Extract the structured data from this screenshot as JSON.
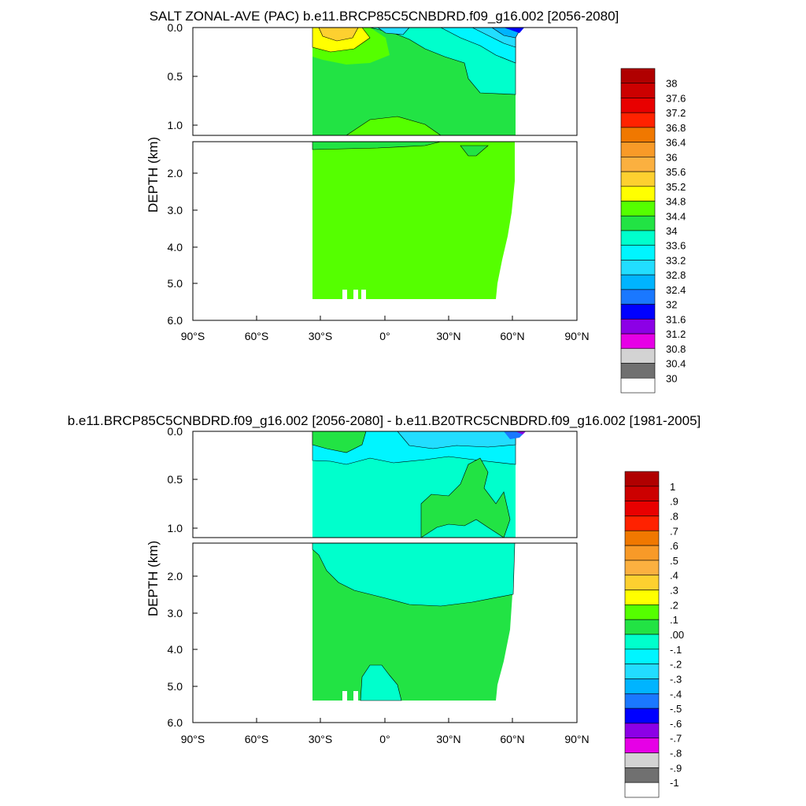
{
  "chart_data": [
    {
      "type": "heatmap",
      "title": "SALT ZONAL-AVE (PAC) b.e11.BRCP85C5CNBDRD.f09_g16.002 [2056-2080]",
      "ylabel": "DEPTH (km)",
      "xlabel": "",
      "x_ticks": [
        "90°S",
        "60°S",
        "30°S",
        "0°",
        "30°N",
        "60°N",
        "90°N"
      ],
      "upper_y_ticks": [
        "0.0",
        "0.5",
        "1.0"
      ],
      "lower_y_ticks": [
        "2.0",
        "3.0",
        "4.0",
        "5.0",
        "6.0"
      ],
      "colorbar_labels": [
        "38",
        "37.6",
        "37.2",
        "36.8",
        "36.4",
        "36",
        "35.6",
        "35.2",
        "34.8",
        "34.4",
        "34",
        "33.6",
        "33.2",
        "32.8",
        "32.4",
        "32",
        "31.6",
        "31.2",
        "30.8",
        "30.4",
        "30"
      ],
      "colorbar_colors": [
        "#b00000",
        "#cc0000",
        "#e80000",
        "#ff2200",
        "#f07800",
        "#f89a28",
        "#fbb040",
        "#fdd030",
        "#ffff00",
        "#55ff00",
        "#22e344",
        "#00ffcc",
        "#00f5ff",
        "#22ddff",
        "#00b4ff",
        "#1a78ff",
        "#0000ff",
        "#8c00e6",
        "#e600e6",
        "#d3d3d3",
        "#707070",
        "#ffffff"
      ],
      "background_color": "#22e344"
    },
    {
      "type": "heatmap",
      "title": "b.e11.BRCP85C5CNBDRD.f09_g16.002 [2056-2080] - b.e11.B20TRC5CNBDRD.f09_g16.002 [1981-2005]",
      "ylabel": "DEPTH (km)",
      "xlabel": "",
      "x_ticks": [
        "90°S",
        "60°S",
        "30°S",
        "0°",
        "30°N",
        "60°N",
        "90°N"
      ],
      "upper_y_ticks": [
        "0.0",
        "0.5",
        "1.0"
      ],
      "lower_y_ticks": [
        "2.0",
        "3.0",
        "4.0",
        "5.0",
        "6.0"
      ],
      "colorbar_labels": [
        "1",
        ".9",
        ".8",
        ".7",
        ".6",
        ".5",
        ".4",
        ".3",
        ".2",
        ".1",
        ".00",
        "-.1",
        "-.2",
        "-.3",
        "-.4",
        "-.5",
        "-.6",
        "-.7",
        "-.8",
        "-.9",
        "-1"
      ],
      "colorbar_colors": [
        "#b00000",
        "#cc0000",
        "#e80000",
        "#ff2200",
        "#f07800",
        "#f89a28",
        "#fbb040",
        "#fdd030",
        "#ffff00",
        "#55ff00",
        "#22e344",
        "#00ffcc",
        "#00f5ff",
        "#22ddff",
        "#00b4ff",
        "#1a78ff",
        "#0000ff",
        "#8c00e6",
        "#e600e6",
        "#d3d3d3",
        "#707070",
        "#ffffff"
      ],
      "background_color": "#00ffcc"
    }
  ]
}
